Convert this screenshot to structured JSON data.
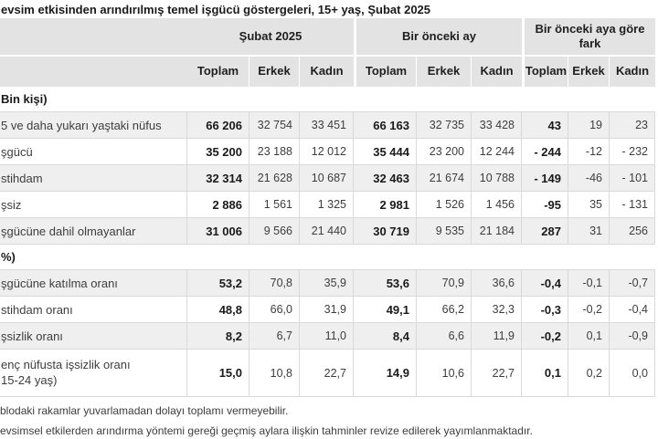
{
  "title": "evsim etkisinden arındırılmış temel işgücü göstergeleri, 15+ yaş, Şubat 2025",
  "colors": {
    "header_bg": "#e3e3e3",
    "alt_row_bg": "#efefef",
    "border": "#d9d9d9",
    "text": "#3d3d3d",
    "bold_text": "#1a1a1a"
  },
  "chart_data": {
    "type": "table",
    "title": "evsim etkisinden arındırılmış temel işgücü göstergeleri, 15+ yaş, Şubat 2025",
    "column_groups": [
      {
        "label": "Şubat 2025",
        "columns": [
          "Toplam",
          "Erkek",
          "Kadın"
        ]
      },
      {
        "label": "Bir önceki ay",
        "columns": [
          "Toplam",
          "Erkek",
          "Kadın"
        ]
      },
      {
        "label": "Bir önceki aya göre fark",
        "columns": [
          "Toplam",
          "Erkek",
          "Kadın"
        ]
      }
    ],
    "sections": [
      {
        "label": "Bin kişi)",
        "rows": [
          {
            "label": "5 ve daha yukarı yaştaki nüfus",
            "values": [
              "66 206",
              "32 754",
              "33 451",
              "66 163",
              "32 735",
              "33 428",
              "43",
              "19",
              "23"
            ]
          },
          {
            "label": "şgücü",
            "values": [
              "35 200",
              "23 188",
              "12 012",
              "35 444",
              "23 200",
              "12 244",
              "- 244",
              "-12",
              "- 232"
            ]
          },
          {
            "label": "stihdam",
            "values": [
              "32 314",
              "21 628",
              "10 687",
              "32 463",
              "21 674",
              "10 788",
              "- 149",
              "-46",
              "- 101"
            ]
          },
          {
            "label": "şsiz",
            "values": [
              "2 886",
              "1 561",
              "1 325",
              "2 981",
              "1 526",
              "1 456",
              "-95",
              "35",
              "- 131"
            ]
          },
          {
            "label": "şgücüne dahil olmayanlar",
            "values": [
              "31 006",
              "9 566",
              "21 440",
              "30 719",
              "9 535",
              "21 184",
              "287",
              "31",
              "256"
            ]
          }
        ]
      },
      {
        "label": "%)",
        "rows": [
          {
            "label": "şgücüne katılma oranı",
            "values": [
              "53,2",
              "70,8",
              "35,9",
              "53,6",
              "70,9",
              "36,6",
              "-0,4",
              "-0,1",
              "-0,7"
            ]
          },
          {
            "label": "stihdam oranı",
            "values": [
              "48,8",
              "66,0",
              "31,9",
              "49,1",
              "66,2",
              "32,3",
              "-0,3",
              "-0,2",
              "-0,4"
            ]
          },
          {
            "label": "şsizlik oranı",
            "values": [
              "8,2",
              "6,7",
              "11,0",
              "8,4",
              "6,6",
              "11,9",
              "-0,2",
              "0,1",
              "-0,9"
            ]
          },
          {
            "label": "enç nüfusta işsizlik oranı",
            "label2": "15-24 yaş)",
            "values": [
              "15,0",
              "10,8",
              "22,7",
              "14,9",
              "10,6",
              "22,7",
              "0,1",
              "0,2",
              "0,0"
            ]
          }
        ]
      }
    ],
    "footnotes": [
      "blodaki rakamlar yuvarlamadan dolayı toplamı vermeyebilir.",
      "evsimsel etkilerden arındırma yöntemi gereği geçmiş aylara ilişkin tahminler revize edilerek yayımlanmaktadır."
    ]
  }
}
